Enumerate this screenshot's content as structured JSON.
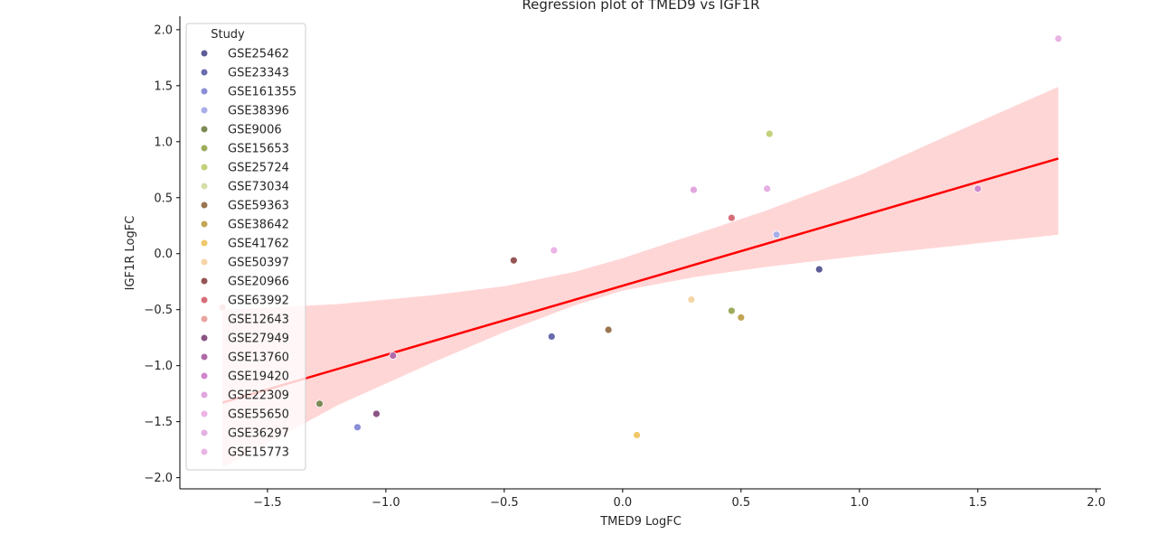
{
  "chart_data": {
    "type": "scatter",
    "title": "Regression plot of TMED9 vs IGF1R",
    "xlabel": "TMED9 LogFC",
    "ylabel": "IGF1R LogFC",
    "xlim": [
      -1.87,
      2.02
    ],
    "ylim": [
      -2.1,
      2.12
    ],
    "xticks": [
      -1.5,
      -1.0,
      -0.5,
      0.0,
      0.5,
      1.0,
      1.5,
      2.0
    ],
    "yticks": [
      -2.0,
      -1.5,
      -1.0,
      -0.5,
      0.0,
      0.5,
      1.0,
      1.5,
      2.0
    ],
    "grid": false,
    "legend_title": "Study",
    "legend_position": "upper-left",
    "regression": {
      "color": "#ff0000",
      "ci_color": "#ffd6d6",
      "line": [
        [
          -1.69,
          -1.33
        ],
        [
          1.84,
          0.85
        ]
      ],
      "ci": [
        {
          "x": -1.69,
          "lo": -1.91,
          "hi": -0.5
        },
        {
          "x": -1.2,
          "lo": -1.35,
          "hi": -0.45
        },
        {
          "x": -0.8,
          "lo": -0.97,
          "hi": -0.37
        },
        {
          "x": -0.5,
          "lo": -0.7,
          "hi": -0.29
        },
        {
          "x": -0.2,
          "lo": -0.46,
          "hi": -0.16
        },
        {
          "x": 0.0,
          "lo": -0.33,
          "hi": -0.04
        },
        {
          "x": 0.3,
          "lo": -0.21,
          "hi": 0.17
        },
        {
          "x": 0.6,
          "lo": -0.12,
          "hi": 0.38
        },
        {
          "x": 1.0,
          "lo": -0.02,
          "hi": 0.7
        },
        {
          "x": 1.4,
          "lo": 0.07,
          "hi": 1.08
        },
        {
          "x": 1.84,
          "lo": 0.17,
          "hi": 1.49
        }
      ]
    },
    "series": [
      {
        "name": "GSE25462",
        "color": "#5c5c97",
        "points": [
          [
            0.83,
            -0.14
          ]
        ]
      },
      {
        "name": "GSE23343",
        "color": "#6a6aae",
        "points": [
          [
            -0.3,
            -0.74
          ]
        ]
      },
      {
        "name": "GSE161355",
        "color": "#8a8ed6",
        "points": [
          [
            -1.12,
            -1.55
          ]
        ]
      },
      {
        "name": "GSE38396",
        "color": "#a9aee8",
        "points": [
          [
            0.65,
            0.17
          ]
        ]
      },
      {
        "name": "GSE9006",
        "color": "#7d8a55",
        "points": [
          [
            -1.28,
            -1.34
          ]
        ]
      },
      {
        "name": "GSE15653",
        "color": "#9cac5c",
        "points": [
          [
            0.46,
            -0.51
          ]
        ]
      },
      {
        "name": "GSE25724",
        "color": "#c5d07a",
        "points": [
          [
            0.62,
            1.07
          ]
        ]
      },
      {
        "name": "GSE73034",
        "color": "#d6deaa",
        "points": []
      },
      {
        "name": "GSE59363",
        "color": "#9a7550",
        "points": [
          [
            -0.06,
            -0.68
          ]
        ]
      },
      {
        "name": "GSE38642",
        "color": "#c2a655",
        "points": [
          [
            0.5,
            -0.57
          ]
        ]
      },
      {
        "name": "GSE41762",
        "color": "#f0c96a",
        "points": [
          [
            0.06,
            -1.62
          ]
        ]
      },
      {
        "name": "GSE50397",
        "color": "#f5d4a6",
        "points": [
          [
            0.29,
            -0.41
          ]
        ]
      },
      {
        "name": "GSE20966",
        "color": "#965555",
        "points": [
          [
            -0.46,
            -0.06
          ]
        ]
      },
      {
        "name": "GSE63992",
        "color": "#d66e7a",
        "points": [
          [
            0.46,
            0.32
          ]
        ]
      },
      {
        "name": "GSE12643",
        "color": "#eaa5a0",
        "points": [
          [
            -1.69,
            -0.48
          ]
        ]
      },
      {
        "name": "GSE27949",
        "color": "#8a5585",
        "points": [
          [
            -1.04,
            -1.43
          ]
        ]
      },
      {
        "name": "GSE13760",
        "color": "#b06aa8",
        "points": [
          [
            -0.97,
            -0.91
          ]
        ]
      },
      {
        "name": "GSE19420",
        "color": "#cf86cc",
        "points": [
          [
            1.5,
            0.58
          ]
        ]
      },
      {
        "name": "GSE22309",
        "color": "#e2a6df",
        "points": [
          [
            0.3,
            0.57
          ]
        ]
      },
      {
        "name": "GSE55650",
        "color": "#ecb3e6",
        "points": [
          [
            -0.29,
            0.03
          ]
        ]
      },
      {
        "name": "GSE36297",
        "color": "#e5b0e2",
        "points": [
          [
            0.61,
            0.58
          ]
        ]
      },
      {
        "name": "GSE15773",
        "color": "#e8b4e4",
        "points": [
          [
            1.84,
            1.92
          ]
        ]
      }
    ]
  }
}
